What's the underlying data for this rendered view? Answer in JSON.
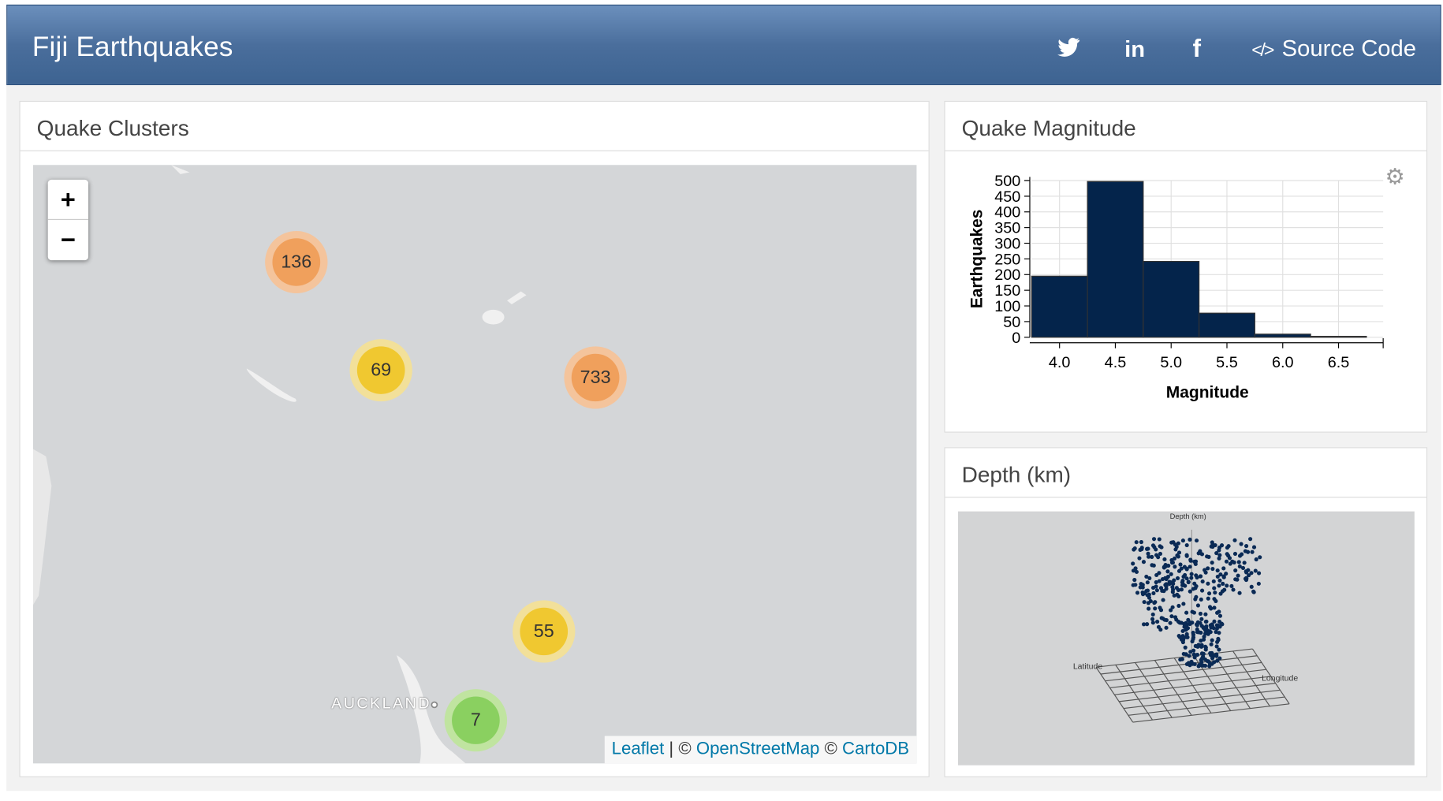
{
  "header": {
    "title": "Fiji Earthquakes",
    "source_label": "Source Code",
    "source_icon": "code-icon",
    "social": [
      "twitter-icon",
      "linkedin-icon",
      "facebook-icon"
    ]
  },
  "map_panel": {
    "title": "Quake Clusters",
    "zoom_in": "+",
    "zoom_out": "−",
    "clusters": [
      {
        "count": "136",
        "color": "#f0a05c",
        "ring": "#f4c49c"
      },
      {
        "count": "69",
        "color": "#f0c830",
        "ring": "#f2e09a"
      },
      {
        "count": "733",
        "color": "#f0a05c",
        "ring": "#f4c49c"
      },
      {
        "count": "55",
        "color": "#f0c830",
        "ring": "#f2e09a"
      },
      {
        "count": "7",
        "color": "#8ad060",
        "ring": "#c0e4a0"
      }
    ],
    "city_label": "AUCKLAND",
    "attribution": {
      "leaflet": "Leaflet",
      "sep": " | © ",
      "osm": "OpenStreetMap",
      "sep2": " © ",
      "carto": "CartoDB"
    }
  },
  "magnitude_panel": {
    "title": "Quake Magnitude",
    "settings_icon": "gear-icon"
  },
  "depth_panel": {
    "title": "Depth (km)",
    "plot_labels": {
      "depth": "Depth (km)",
      "latitude": "Latitude",
      "longitude": "Longitude"
    }
  },
  "chart_data": {
    "type": "bar",
    "xlabel": "Magnitude",
    "ylabel": "Earthquakes",
    "bins": [
      [
        3.75,
        4.25
      ],
      [
        4.25,
        4.75
      ],
      [
        4.75,
        5.25
      ],
      [
        5.25,
        5.75
      ],
      [
        5.75,
        6.25
      ],
      [
        6.25,
        6.75
      ]
    ],
    "values": [
      195,
      497,
      242,
      77,
      10,
      3
    ],
    "xticks": [
      "4.0",
      "4.5",
      "5.0",
      "5.5",
      "6.0",
      "6.5"
    ],
    "yticks": [
      "0",
      "50",
      "100",
      "150",
      "200",
      "250",
      "300",
      "350",
      "400",
      "450",
      "500"
    ],
    "ylim": [
      0,
      500
    ],
    "xlim": [
      3.75,
      6.9
    ],
    "grid": true,
    "bar_color": "#04244b"
  }
}
